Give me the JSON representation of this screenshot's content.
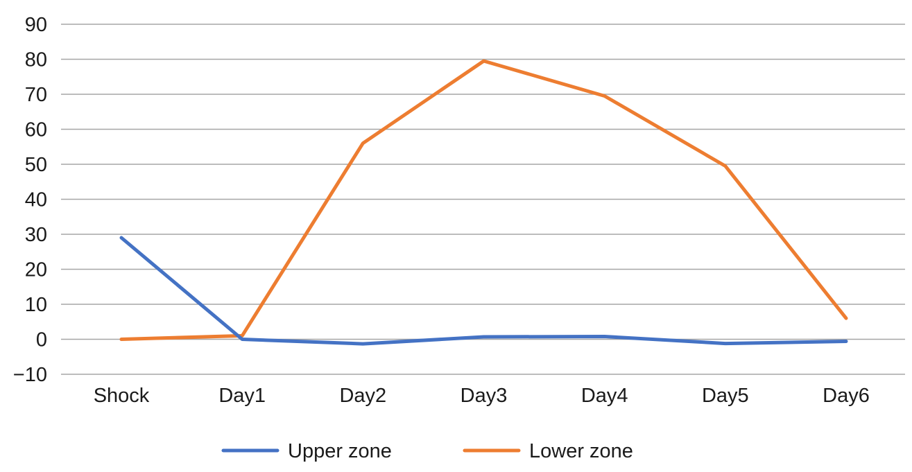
{
  "chart_data": {
    "type": "line",
    "title": "",
    "xlabel": "",
    "ylabel": "",
    "categories": [
      "Shock",
      "Day1",
      "Day2",
      "Day3",
      "Day4",
      "Day5",
      "Day6"
    ],
    "ylim": [
      -10,
      90
    ],
    "yticks": [
      -10,
      0,
      10,
      20,
      30,
      40,
      50,
      60,
      70,
      80,
      90
    ],
    "ytick_labels": [
      "−10",
      "0",
      "10",
      "20",
      "30",
      "40",
      "50",
      "60",
      "70",
      "80",
      "90"
    ],
    "grid": true,
    "legend_position": "bottom",
    "series": [
      {
        "name": "Upper zone",
        "color": "#4472c4",
        "values": [
          29,
          0,
          -1.3,
          0.7,
          0.8,
          -1.2,
          -0.6
        ]
      },
      {
        "name": "Lower zone",
        "color": "#ed7d31",
        "values": [
          0,
          1,
          56,
          79.5,
          69.5,
          49.5,
          6
        ]
      }
    ]
  }
}
